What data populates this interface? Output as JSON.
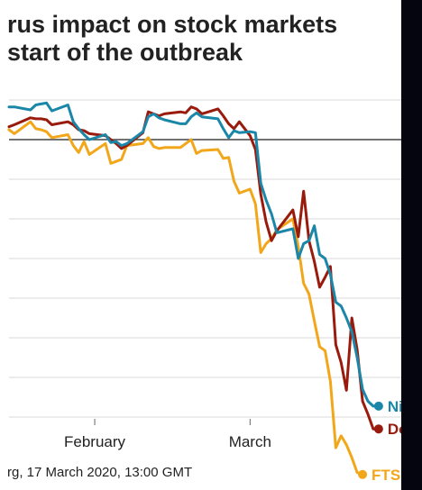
{
  "title_lines": [
    "rus impact on stock markets",
    "start of the outbreak"
  ],
  "source": "rg, 17 March 2020, 13:00 GMT",
  "chart_data": {
    "type": "line",
    "title": "rus impact on stock markets start of the outbreak",
    "xlabel": "",
    "ylabel": "",
    "x_tick_labels": [
      "February",
      "March"
    ],
    "x_tick_dates": [
      "2020-02-01",
      "2020-03-01"
    ],
    "x_range": [
      "2020-01-16",
      "2020-03-23"
    ],
    "ylim": [
      -40,
      10
    ],
    "baseline": 0,
    "grid": true,
    "legend": "end-of-line labels",
    "series": [
      {
        "name": "Nik",
        "color": "#1a86a8",
        "end_marker": true,
        "points": [
          [
            "2020-01-16",
            3.3
          ],
          [
            "2020-01-17",
            3.3
          ],
          [
            "2020-01-20",
            3.0
          ],
          [
            "2020-01-21",
            3.5
          ],
          [
            "2020-01-22",
            3.6
          ],
          [
            "2020-01-23",
            3.7
          ],
          [
            "2020-01-24",
            2.9
          ],
          [
            "2020-01-27",
            3.5
          ],
          [
            "2020-01-28",
            1.8
          ],
          [
            "2020-01-29",
            1.1
          ],
          [
            "2020-01-30",
            0.5
          ],
          [
            "2020-01-31",
            0.0
          ],
          [
            "2020-02-03",
            0.5
          ],
          [
            "2020-02-04",
            -0.3
          ],
          [
            "2020-02-05",
            -0.2
          ],
          [
            "2020-02-06",
            -0.6
          ],
          [
            "2020-02-07",
            -0.4
          ],
          [
            "2020-02-10",
            0.8
          ],
          [
            "2020-02-11",
            2.3
          ],
          [
            "2020-02-12",
            2.6
          ],
          [
            "2020-02-13",
            2.2
          ],
          [
            "2020-02-14",
            2.0
          ],
          [
            "2020-02-17",
            1.6
          ],
          [
            "2020-02-18",
            1.6
          ],
          [
            "2020-02-19",
            2.3
          ],
          [
            "2020-02-20",
            2.7
          ],
          [
            "2020-02-21",
            2.3
          ],
          [
            "2020-02-24",
            2.1
          ],
          [
            "2020-02-25",
            1.1
          ],
          [
            "2020-02-26",
            0.2
          ],
          [
            "2020-02-27",
            0.9
          ],
          [
            "2020-02-28",
            0.7
          ],
          [
            "2020-03-01",
            0.8
          ],
          [
            "2020-03-02",
            0.7
          ],
          [
            "2020-03-03",
            -4.4
          ],
          [
            "2020-03-04",
            -6.1
          ],
          [
            "2020-03-05",
            -7.5
          ],
          [
            "2020-03-06",
            -9.4
          ],
          [
            "2020-03-09",
            -9.0
          ],
          [
            "2020-03-10",
            -12.0
          ],
          [
            "2020-03-11",
            -10.5
          ],
          [
            "2020-03-12",
            -10.2
          ],
          [
            "2020-03-13",
            -8.7
          ],
          [
            "2020-03-14",
            -11.6
          ],
          [
            "2020-03-15",
            -12.0
          ],
          [
            "2020-03-16",
            -13.6
          ],
          [
            "2020-03-17",
            -16.4
          ],
          [
            "2020-03-18",
            -16.8
          ],
          [
            "2020-03-19",
            -18.0
          ],
          [
            "2020-03-20",
            -19.4
          ],
          [
            "2020-03-21",
            -22.0
          ],
          [
            "2020-03-22",
            -25.2
          ],
          [
            "2020-03-23",
            -26.4
          ],
          [
            "2020-03-24",
            -26.9
          ],
          [
            "2020-03-25",
            -26.9
          ]
        ]
      },
      {
        "name": "Do",
        "color": "#991b0d",
        "end_marker": true,
        "points": [
          [
            "2020-01-16",
            1.3
          ],
          [
            "2020-01-17",
            1.5
          ],
          [
            "2020-01-20",
            2.2
          ],
          [
            "2020-01-21",
            2.1
          ],
          [
            "2020-01-22",
            2.1
          ],
          [
            "2020-01-23",
            2.0
          ],
          [
            "2020-01-24",
            1.5
          ],
          [
            "2020-01-27",
            1.8
          ],
          [
            "2020-01-28",
            1.5
          ],
          [
            "2020-01-29",
            1.0
          ],
          [
            "2020-01-30",
            0.9
          ],
          [
            "2020-01-31",
            0.6
          ],
          [
            "2020-02-03",
            0.4
          ],
          [
            "2020-02-04",
            0.0
          ],
          [
            "2020-02-05",
            -0.4
          ],
          [
            "2020-02-06",
            -0.9
          ],
          [
            "2020-02-07",
            -0.6
          ],
          [
            "2020-02-10",
            0.7
          ],
          [
            "2020-02-11",
            2.8
          ],
          [
            "2020-02-12",
            2.6
          ],
          [
            "2020-02-13",
            2.4
          ],
          [
            "2020-02-14",
            2.6
          ],
          [
            "2020-02-17",
            2.8
          ],
          [
            "2020-02-18",
            2.7
          ],
          [
            "2020-02-19",
            3.3
          ],
          [
            "2020-02-20",
            3.1
          ],
          [
            "2020-02-21",
            2.6
          ],
          [
            "2020-02-24",
            3.1
          ],
          [
            "2020-02-25",
            2.4
          ],
          [
            "2020-02-26",
            1.6
          ],
          [
            "2020-02-27",
            1.1
          ],
          [
            "2020-02-28",
            1.8
          ],
          [
            "2020-03-01",
            0.4
          ],
          [
            "2020-03-02",
            -1.0
          ],
          [
            "2020-03-03",
            -5.5
          ],
          [
            "2020-03-04",
            -8.3
          ],
          [
            "2020-03-05",
            -10.2
          ],
          [
            "2020-03-06",
            -9.2
          ],
          [
            "2020-03-09",
            -7.1
          ],
          [
            "2020-03-10",
            -9.8
          ],
          [
            "2020-03-11",
            -5.2
          ],
          [
            "2020-03-12",
            -10.2
          ],
          [
            "2020-03-13",
            -12.3
          ],
          [
            "2020-03-14",
            -14.9
          ],
          [
            "2020-03-15",
            -13.9
          ],
          [
            "2020-03-16",
            -12.8
          ],
          [
            "2020-03-17",
            -20.7
          ],
          [
            "2020-03-18",
            -22.5
          ],
          [
            "2020-03-19",
            -25.3
          ],
          [
            "2020-03-20",
            -18.0
          ],
          [
            "2020-03-21",
            -21.2
          ],
          [
            "2020-03-22",
            -26.4
          ],
          [
            "2020-03-23",
            -27.7
          ],
          [
            "2020-03-24",
            -29.2
          ],
          [
            "2020-03-25",
            -29.2
          ]
        ]
      },
      {
        "name": "FTS",
        "color": "#f2a71b",
        "end_marker": true,
        "points": [
          [
            "2020-01-16",
            1.0
          ],
          [
            "2020-01-17",
            0.6
          ],
          [
            "2020-01-20",
            1.8
          ],
          [
            "2020-01-21",
            1.1
          ],
          [
            "2020-01-22",
            1.0
          ],
          [
            "2020-01-23",
            0.8
          ],
          [
            "2020-01-24",
            0.2
          ],
          [
            "2020-01-27",
            0.5
          ],
          [
            "2020-01-28",
            -0.6
          ],
          [
            "2020-01-29",
            -1.3
          ],
          [
            "2020-01-30",
            -0.2
          ],
          [
            "2020-01-31",
            -1.5
          ],
          [
            "2020-02-03",
            -0.4
          ],
          [
            "2020-02-04",
            -2.4
          ],
          [
            "2020-02-05",
            -2.2
          ],
          [
            "2020-02-06",
            -2.0
          ],
          [
            "2020-02-07",
            -0.6
          ],
          [
            "2020-02-10",
            -0.4
          ],
          [
            "2020-02-11",
            0.2
          ],
          [
            "2020-02-12",
            -0.7
          ],
          [
            "2020-02-13",
            -0.9
          ],
          [
            "2020-02-14",
            -0.8
          ],
          [
            "2020-02-17",
            -0.8
          ],
          [
            "2020-02-18",
            -0.4
          ],
          [
            "2020-02-19",
            0.0
          ],
          [
            "2020-02-20",
            -1.4
          ],
          [
            "2020-02-21",
            -1.1
          ],
          [
            "2020-02-24",
            -1.0
          ],
          [
            "2020-02-25",
            -1.9
          ],
          [
            "2020-02-26",
            -1.8
          ],
          [
            "2020-02-27",
            -4.2
          ],
          [
            "2020-02-28",
            -5.4
          ],
          [
            "2020-03-01",
            -5.0
          ],
          [
            "2020-03-02",
            -6.5
          ],
          [
            "2020-03-03",
            -11.4
          ],
          [
            "2020-03-04",
            -10.5
          ],
          [
            "2020-03-05",
            -10.0
          ],
          [
            "2020-03-06",
            -9.1
          ],
          [
            "2020-03-09",
            -8.0
          ],
          [
            "2020-03-10",
            -10.8
          ],
          [
            "2020-03-11",
            -14.5
          ],
          [
            "2020-03-12",
            -15.6
          ],
          [
            "2020-03-13",
            -18.3
          ],
          [
            "2020-03-14",
            -20.9
          ],
          [
            "2020-03-15",
            -21.3
          ],
          [
            "2020-03-16",
            -24.4
          ],
          [
            "2020-03-17",
            -31.1
          ],
          [
            "2020-03-18",
            -29.9
          ],
          [
            "2020-03-19",
            -30.8
          ],
          [
            "2020-03-20",
            -32.1
          ],
          [
            "2020-03-21",
            -33.6
          ],
          [
            "2020-03-22",
            -33.8
          ]
        ]
      }
    ]
  }
}
